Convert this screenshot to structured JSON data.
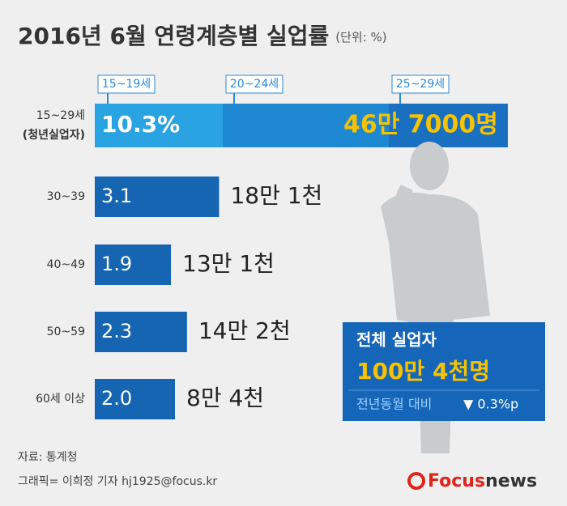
{
  "chart_data": {
    "type": "bar",
    "orientation": "horizontal",
    "title": "2016년 6월 연령계층별 실업률",
    "unit": "(단위: %)",
    "categories": [
      "15~29세",
      "30~39",
      "40~49",
      "50~59",
      "60세 이상"
    ],
    "category_note": "(청년실업자)",
    "values": [
      10.3,
      3.1,
      1.9,
      2.3,
      2.0
    ],
    "value_labels": [
      "10.3%",
      "3.1",
      "1.9",
      "2.3",
      "2.0"
    ],
    "counts": [
      "46만 7000명",
      "18만 1천",
      "13만 1천",
      "14만 2천",
      "8만 4천"
    ],
    "color": "#1565b3",
    "segments": [
      "15~19세",
      "20~24세",
      "25~29세"
    ],
    "segment_colors": [
      "#2aa3e2",
      "#1e88d2",
      "#1a70c0"
    ],
    "summary": {
      "title": "전체 실업자",
      "total": "100만 4천명",
      "compare": "전년동월 대비",
      "change": "▼ 0.3%p"
    },
    "source": "자료: 통계청",
    "credit": "그래픽= 이희정 기자 hj1925@focus.kr",
    "logo": {
      "brand": "Focus",
      "suffix": "news"
    }
  }
}
